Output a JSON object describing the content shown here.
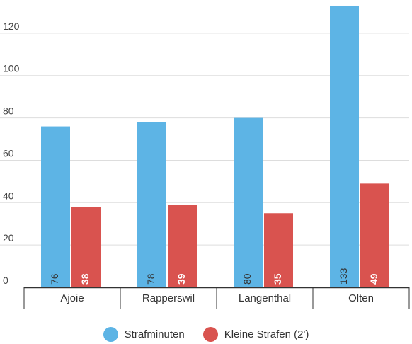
{
  "chart_data": {
    "type": "bar",
    "categories": [
      "Ajoie",
      "Rapperswil",
      "Langenthal",
      "Olten"
    ],
    "series": [
      {
        "name": "Strafminuten",
        "values": [
          76,
          78,
          80,
          133
        ],
        "color": "#5db4e5"
      },
      {
        "name": "Kleine Strafen (2')",
        "values": [
          38,
          39,
          35,
          49
        ],
        "color": "#d9534f"
      }
    ],
    "yticks": [
      0,
      20,
      40,
      60,
      80,
      100,
      120
    ],
    "ylim": [
      0,
      134
    ],
    "grid": true,
    "legend": "bottom-center",
    "data_labels": true
  }
}
